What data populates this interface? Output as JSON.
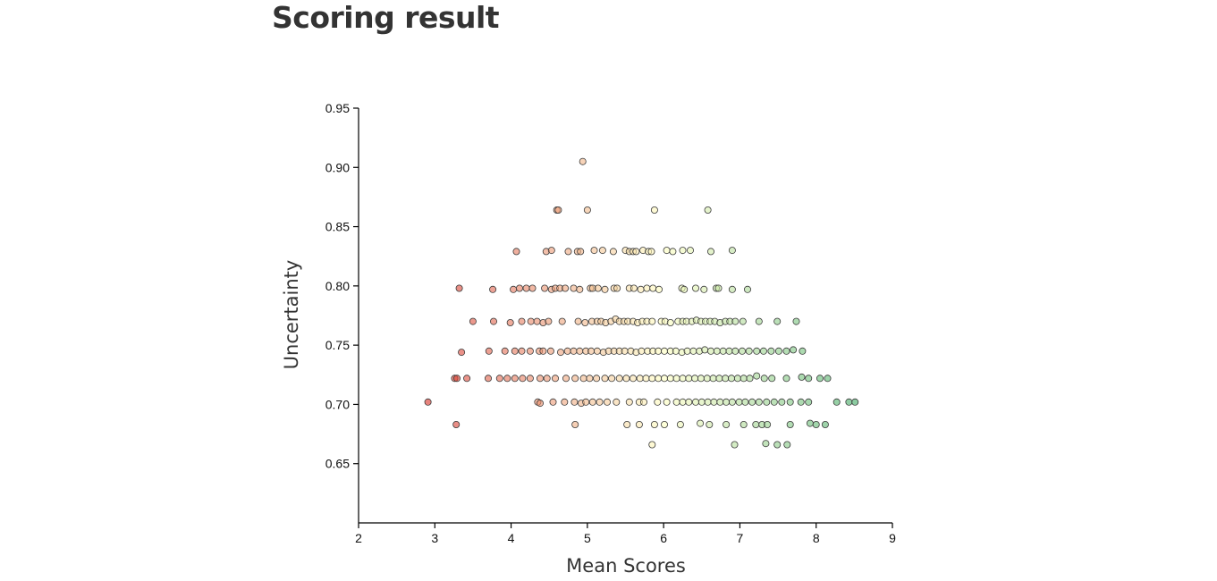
{
  "page": {
    "title": "Scoring result"
  },
  "chart_data": {
    "type": "scatter",
    "xlabel": "Mean Scores",
    "ylabel": "Uncertainty",
    "xlim": [
      2,
      9
    ],
    "ylim": [
      0.6,
      0.95
    ],
    "x_ticks": [
      2,
      3,
      4,
      5,
      6,
      7,
      8,
      9
    ],
    "y_ticks": [
      0.65,
      0.7,
      0.75,
      0.8,
      0.85,
      0.9,
      0.95
    ],
    "y_tick_labels": [
      "0.65",
      "0.70",
      "0.75",
      "0.80",
      "0.85",
      "0.90",
      "0.95"
    ],
    "grid": false,
    "color_scale": {
      "low": "#d73027",
      "mid": "#ffffbf",
      "high": "#1a9850",
      "domain": [
        3,
        6,
        9
      ],
      "opacity": 0.6
    },
    "points": [
      [
        4.94,
        0.905
      ],
      [
        4.6,
        0.864
      ],
      [
        4.62,
        0.864
      ],
      [
        5.0,
        0.864
      ],
      [
        5.88,
        0.864
      ],
      [
        6.58,
        0.864
      ],
      [
        4.07,
        0.829
      ],
      [
        4.46,
        0.829
      ],
      [
        4.53,
        0.83
      ],
      [
        4.75,
        0.829
      ],
      [
        4.87,
        0.829
      ],
      [
        4.91,
        0.829
      ],
      [
        5.09,
        0.83
      ],
      [
        5.2,
        0.83
      ],
      [
        5.34,
        0.829
      ],
      [
        5.5,
        0.83
      ],
      [
        5.55,
        0.829
      ],
      [
        5.6,
        0.829
      ],
      [
        5.64,
        0.829
      ],
      [
        5.73,
        0.83
      ],
      [
        5.8,
        0.829
      ],
      [
        5.84,
        0.829
      ],
      [
        6.04,
        0.83
      ],
      [
        6.12,
        0.829
      ],
      [
        6.25,
        0.83
      ],
      [
        6.35,
        0.83
      ],
      [
        6.62,
        0.829
      ],
      [
        6.9,
        0.83
      ],
      [
        3.32,
        0.798
      ],
      [
        3.76,
        0.797
      ],
      [
        4.03,
        0.797
      ],
      [
        4.11,
        0.798
      ],
      [
        4.2,
        0.798
      ],
      [
        4.28,
        0.798
      ],
      [
        4.44,
        0.798
      ],
      [
        4.53,
        0.797
      ],
      [
        4.58,
        0.798
      ],
      [
        4.64,
        0.798
      ],
      [
        4.71,
        0.798
      ],
      [
        4.82,
        0.798
      ],
      [
        4.9,
        0.797
      ],
      [
        5.04,
        0.798
      ],
      [
        5.07,
        0.798
      ],
      [
        5.14,
        0.798
      ],
      [
        5.23,
        0.797
      ],
      [
        5.35,
        0.798
      ],
      [
        5.39,
        0.798
      ],
      [
        5.55,
        0.798
      ],
      [
        5.61,
        0.798
      ],
      [
        5.7,
        0.797
      ],
      [
        5.78,
        0.798
      ],
      [
        5.86,
        0.798
      ],
      [
        5.94,
        0.797
      ],
      [
        6.24,
        0.798
      ],
      [
        6.27,
        0.797
      ],
      [
        6.42,
        0.798
      ],
      [
        6.53,
        0.797
      ],
      [
        6.69,
        0.798
      ],
      [
        6.72,
        0.798
      ],
      [
        6.9,
        0.797
      ],
      [
        7.1,
        0.797
      ],
      [
        3.5,
        0.77
      ],
      [
        3.77,
        0.77
      ],
      [
        3.99,
        0.769
      ],
      [
        4.14,
        0.77
      ],
      [
        4.26,
        0.77
      ],
      [
        4.34,
        0.77
      ],
      [
        4.42,
        0.769
      ],
      [
        4.49,
        0.77
      ],
      [
        4.67,
        0.77
      ],
      [
        4.88,
        0.77
      ],
      [
        4.97,
        0.769
      ],
      [
        5.06,
        0.77
      ],
      [
        5.13,
        0.77
      ],
      [
        5.18,
        0.77
      ],
      [
        5.24,
        0.769
      ],
      [
        5.31,
        0.77
      ],
      [
        5.37,
        0.772
      ],
      [
        5.42,
        0.77
      ],
      [
        5.48,
        0.77
      ],
      [
        5.53,
        0.77
      ],
      [
        5.6,
        0.77
      ],
      [
        5.66,
        0.769
      ],
      [
        5.72,
        0.77
      ],
      [
        5.78,
        0.77
      ],
      [
        5.85,
        0.77
      ],
      [
        5.97,
        0.77
      ],
      [
        6.02,
        0.77
      ],
      [
        6.09,
        0.769
      ],
      [
        6.19,
        0.77
      ],
      [
        6.25,
        0.77
      ],
      [
        6.3,
        0.77
      ],
      [
        6.37,
        0.77
      ],
      [
        6.43,
        0.771
      ],
      [
        6.49,
        0.77
      ],
      [
        6.55,
        0.77
      ],
      [
        6.61,
        0.77
      ],
      [
        6.67,
        0.77
      ],
      [
        6.74,
        0.769
      ],
      [
        6.81,
        0.77
      ],
      [
        6.87,
        0.77
      ],
      [
        6.94,
        0.77
      ],
      [
        7.04,
        0.77
      ],
      [
        7.25,
        0.77
      ],
      [
        7.49,
        0.77
      ],
      [
        7.74,
        0.77
      ],
      [
        3.35,
        0.744
      ],
      [
        3.71,
        0.745
      ],
      [
        3.92,
        0.745
      ],
      [
        4.05,
        0.745
      ],
      [
        4.14,
        0.745
      ],
      [
        4.25,
        0.745
      ],
      [
        4.37,
        0.745
      ],
      [
        4.42,
        0.745
      ],
      [
        4.52,
        0.745
      ],
      [
        4.65,
        0.744
      ],
      [
        4.74,
        0.745
      ],
      [
        4.82,
        0.745
      ],
      [
        4.9,
        0.745
      ],
      [
        4.98,
        0.745
      ],
      [
        5.05,
        0.745
      ],
      [
        5.13,
        0.745
      ],
      [
        5.21,
        0.744
      ],
      [
        5.28,
        0.745
      ],
      [
        5.35,
        0.745
      ],
      [
        5.42,
        0.745
      ],
      [
        5.49,
        0.745
      ],
      [
        5.57,
        0.745
      ],
      [
        5.64,
        0.744
      ],
      [
        5.71,
        0.745
      ],
      [
        5.79,
        0.745
      ],
      [
        5.86,
        0.745
      ],
      [
        5.93,
        0.745
      ],
      [
        6.01,
        0.745
      ],
      [
        6.09,
        0.745
      ],
      [
        6.16,
        0.745
      ],
      [
        6.24,
        0.744
      ],
      [
        6.31,
        0.745
      ],
      [
        6.39,
        0.745
      ],
      [
        6.47,
        0.745
      ],
      [
        6.54,
        0.746
      ],
      [
        6.62,
        0.745
      ],
      [
        6.7,
        0.745
      ],
      [
        6.78,
        0.745
      ],
      [
        6.86,
        0.745
      ],
      [
        6.94,
        0.745
      ],
      [
        7.03,
        0.745
      ],
      [
        7.12,
        0.745
      ],
      [
        7.22,
        0.745
      ],
      [
        7.31,
        0.745
      ],
      [
        7.41,
        0.745
      ],
      [
        7.51,
        0.745
      ],
      [
        7.61,
        0.745
      ],
      [
        7.7,
        0.746
      ],
      [
        7.82,
        0.745
      ],
      [
        3.26,
        0.722
      ],
      [
        3.29,
        0.722
      ],
      [
        3.42,
        0.722
      ],
      [
        3.7,
        0.722
      ],
      [
        3.85,
        0.722
      ],
      [
        3.95,
        0.722
      ],
      [
        4.05,
        0.722
      ],
      [
        4.15,
        0.722
      ],
      [
        4.25,
        0.722
      ],
      [
        4.38,
        0.722
      ],
      [
        4.47,
        0.722
      ],
      [
        4.58,
        0.722
      ],
      [
        4.72,
        0.722
      ],
      [
        4.84,
        0.722
      ],
      [
        4.95,
        0.722
      ],
      [
        5.03,
        0.722
      ],
      [
        5.12,
        0.722
      ],
      [
        5.23,
        0.722
      ],
      [
        5.32,
        0.722
      ],
      [
        5.42,
        0.722
      ],
      [
        5.51,
        0.722
      ],
      [
        5.6,
        0.722
      ],
      [
        5.69,
        0.722
      ],
      [
        5.77,
        0.722
      ],
      [
        5.85,
        0.722
      ],
      [
        5.93,
        0.722
      ],
      [
        6.01,
        0.722
      ],
      [
        6.09,
        0.722
      ],
      [
        6.17,
        0.722
      ],
      [
        6.25,
        0.722
      ],
      [
        6.33,
        0.722
      ],
      [
        6.41,
        0.722
      ],
      [
        6.49,
        0.722
      ],
      [
        6.57,
        0.722
      ],
      [
        6.65,
        0.722
      ],
      [
        6.73,
        0.722
      ],
      [
        6.81,
        0.722
      ],
      [
        6.89,
        0.722
      ],
      [
        6.97,
        0.722
      ],
      [
        7.05,
        0.722
      ],
      [
        7.13,
        0.722
      ],
      [
        7.22,
        0.724
      ],
      [
        7.32,
        0.722
      ],
      [
        7.42,
        0.722
      ],
      [
        7.61,
        0.722
      ],
      [
        7.81,
        0.723
      ],
      [
        7.9,
        0.722
      ],
      [
        8.05,
        0.722
      ],
      [
        8.15,
        0.722
      ],
      [
        2.91,
        0.702
      ],
      [
        4.35,
        0.702
      ],
      [
        4.38,
        0.701
      ],
      [
        4.55,
        0.702
      ],
      [
        4.7,
        0.702
      ],
      [
        4.83,
        0.702
      ],
      [
        4.92,
        0.701
      ],
      [
        4.98,
        0.702
      ],
      [
        5.07,
        0.702
      ],
      [
        5.16,
        0.702
      ],
      [
        5.26,
        0.702
      ],
      [
        5.38,
        0.702
      ],
      [
        5.55,
        0.702
      ],
      [
        5.68,
        0.702
      ],
      [
        5.74,
        0.702
      ],
      [
        5.92,
        0.702
      ],
      [
        6.04,
        0.702
      ],
      [
        6.17,
        0.702
      ],
      [
        6.25,
        0.702
      ],
      [
        6.33,
        0.702
      ],
      [
        6.42,
        0.702
      ],
      [
        6.5,
        0.702
      ],
      [
        6.58,
        0.702
      ],
      [
        6.66,
        0.702
      ],
      [
        6.74,
        0.702
      ],
      [
        6.82,
        0.702
      ],
      [
        6.9,
        0.702
      ],
      [
        6.99,
        0.702
      ],
      [
        7.07,
        0.702
      ],
      [
        7.16,
        0.702
      ],
      [
        7.25,
        0.702
      ],
      [
        7.35,
        0.702
      ],
      [
        7.45,
        0.702
      ],
      [
        7.55,
        0.702
      ],
      [
        7.66,
        0.702
      ],
      [
        7.8,
        0.702
      ],
      [
        7.9,
        0.702
      ],
      [
        8.27,
        0.702
      ],
      [
        8.43,
        0.702
      ],
      [
        8.51,
        0.702
      ],
      [
        3.28,
        0.683
      ],
      [
        4.84,
        0.683
      ],
      [
        5.52,
        0.683
      ],
      [
        5.68,
        0.683
      ],
      [
        5.88,
        0.683
      ],
      [
        6.01,
        0.683
      ],
      [
        6.22,
        0.683
      ],
      [
        6.48,
        0.684
      ],
      [
        6.6,
        0.683
      ],
      [
        6.82,
        0.683
      ],
      [
        7.05,
        0.683
      ],
      [
        7.21,
        0.683
      ],
      [
        7.29,
        0.683
      ],
      [
        7.36,
        0.683
      ],
      [
        7.66,
        0.683
      ],
      [
        7.92,
        0.684
      ],
      [
        8.0,
        0.683
      ],
      [
        8.12,
        0.683
      ],
      [
        5.85,
        0.666
      ],
      [
        6.93,
        0.666
      ],
      [
        7.34,
        0.667
      ],
      [
        7.49,
        0.666
      ],
      [
        7.62,
        0.666
      ]
    ]
  }
}
